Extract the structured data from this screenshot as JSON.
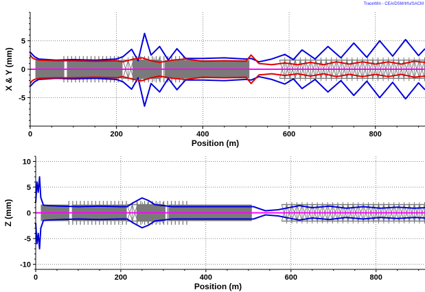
{
  "watermark": "TraceWin - CEA/DSM/Irfu/SACM",
  "colors": {
    "x_envelope": "#e00000",
    "y_envelope": "#0000dd",
    "z_envelope": "#0000dd",
    "axis_line": "#ff00ff",
    "elements": "#7a7a7a",
    "grid": "#000000"
  },
  "chart_data": [
    {
      "type": "line",
      "title": "",
      "xlabel": "Position (m)",
      "ylabel": "X & Y (mm)",
      "xlim": [
        0,
        915
      ],
      "ylim": [
        -10,
        10
      ],
      "xticks": [
        0,
        200,
        400,
        600,
        800
      ],
      "yticks": [
        5,
        0,
        -5
      ],
      "grid": true,
      "series": [
        {
          "color": "y_envelope",
          "x": [
            0,
            5,
            10,
            20,
            60,
            100,
            150,
            200,
            215,
            235,
            250,
            265,
            280,
            300,
            320,
            340,
            360,
            400,
            450,
            500,
            512,
            530,
            560,
            590,
            610,
            630,
            660,
            690,
            720,
            750,
            780,
            810,
            840,
            870,
            900,
            915
          ],
          "y": [
            3,
            2.6,
            2.2,
            1.8,
            1.6,
            1.7,
            1.6,
            1.8,
            2.2,
            3.5,
            1.5,
            6.3,
            2.5,
            4.0,
            1.6,
            3.6,
            1.9,
            1.9,
            2.0,
            1.8,
            1.9,
            1.3,
            1.8,
            2.6,
            1.7,
            3.4,
            1.8,
            4.0,
            2.0,
            4.6,
            2.1,
            5.0,
            2.3,
            5.2,
            2.4,
            3.6
          ]
        },
        {
          "color": "y_envelope",
          "x": [
            0,
            5,
            10,
            20,
            60,
            100,
            150,
            200,
            215,
            235,
            250,
            265,
            280,
            300,
            320,
            340,
            360,
            400,
            450,
            500,
            512,
            530,
            560,
            590,
            610,
            630,
            660,
            690,
            720,
            750,
            780,
            810,
            840,
            870,
            900,
            915
          ],
          "y": [
            -3,
            -2.6,
            -2.2,
            -1.8,
            -1.6,
            -1.7,
            -1.6,
            -1.8,
            -2.2,
            -3.5,
            -1.5,
            -6.5,
            -2.5,
            -4.0,
            -1.6,
            -3.6,
            -1.9,
            -1.9,
            -2.0,
            -1.8,
            -1.9,
            -1.3,
            -1.8,
            -2.6,
            -1.7,
            -3.4,
            -1.8,
            -4.0,
            -2.0,
            -4.6,
            -2.1,
            -5.0,
            -2.3,
            -5.2,
            -2.4,
            -3.6
          ]
        },
        {
          "color": "x_envelope",
          "x": [
            0,
            5,
            10,
            20,
            60,
            100,
            150,
            200,
            215,
            240,
            260,
            280,
            300,
            330,
            360,
            400,
            450,
            500,
            512,
            530,
            560,
            590,
            620,
            650,
            680,
            710,
            740,
            770,
            800,
            830,
            860,
            890,
            915
          ],
          "y": [
            2.5,
            2.0,
            1.8,
            1.6,
            1.5,
            1.5,
            1.4,
            1.5,
            1.3,
            1.8,
            2.0,
            1.5,
            1.2,
            1.6,
            1.8,
            1.4,
            1.5,
            1.4,
            2.5,
            1.0,
            0.8,
            1.1,
            0.8,
            1.2,
            0.8,
            1.3,
            0.9,
            1.3,
            0.9,
            1.3,
            0.9,
            1.4,
            1.2
          ]
        },
        {
          "color": "x_envelope",
          "x": [
            0,
            5,
            10,
            20,
            60,
            100,
            150,
            200,
            215,
            240,
            260,
            280,
            300,
            330,
            360,
            400,
            450,
            500,
            512,
            530,
            560,
            590,
            620,
            650,
            680,
            710,
            740,
            770,
            800,
            830,
            860,
            890,
            915
          ],
          "y": [
            -2.5,
            -2.0,
            -1.8,
            -1.6,
            -1.5,
            -1.5,
            -1.4,
            -1.5,
            -1.3,
            -1.8,
            -2.0,
            -1.5,
            -1.2,
            -1.6,
            -1.8,
            -1.4,
            -1.5,
            -1.4,
            -2.5,
            -1.0,
            -0.8,
            -1.1,
            -0.8,
            -1.2,
            -0.8,
            -1.3,
            -0.9,
            -1.3,
            -0.9,
            -1.3,
            -0.9,
            -1.4,
            -1.2
          ]
        }
      ]
    },
    {
      "type": "line",
      "title": "",
      "xlabel": "Position (m)",
      "ylabel": "Z (mm)",
      "xlim": [
        0,
        915
      ],
      "ylim": [
        -11,
        11
      ],
      "xticks": [
        0,
        200,
        400,
        600,
        800
      ],
      "yticks": [
        10,
        5,
        0,
        -5,
        -10
      ],
      "grid": true,
      "series": [
        {
          "color": "z_envelope",
          "x": [
            0,
            3,
            6,
            9,
            12,
            18,
            30,
            60,
            100,
            150,
            200,
            215,
            230,
            250,
            265,
            280,
            300,
            320,
            400,
            450,
            512,
            540,
            570,
            600,
            620,
            650,
            690,
            730,
            770,
            810,
            850,
            890,
            915
          ],
          "y": [
            2,
            6,
            4,
            7,
            3,
            1.5,
            1.4,
            1.3,
            1.2,
            1.3,
            1.2,
            1.2,
            2.0,
            2.9,
            2.4,
            1.6,
            1.4,
            1.2,
            1.2,
            1.2,
            1.2,
            0.4,
            0.6,
            1.1,
            1.4,
            1.0,
            1.3,
            0.9,
            1.2,
            0.9,
            1.1,
            0.9,
            1.0
          ]
        },
        {
          "color": "z_envelope",
          "x": [
            0,
            3,
            6,
            9,
            12,
            18,
            30,
            60,
            100,
            150,
            200,
            215,
            230,
            250,
            265,
            280,
            300,
            320,
            400,
            450,
            512,
            540,
            570,
            600,
            620,
            650,
            690,
            730,
            770,
            810,
            850,
            890,
            915
          ],
          "y": [
            -2,
            -6,
            -4,
            -7,
            -3,
            -1.5,
            -1.4,
            -1.3,
            -1.2,
            -1.3,
            -1.2,
            -1.2,
            -2.0,
            -2.9,
            -2.4,
            -1.6,
            -1.4,
            -1.2,
            -1.2,
            -1.2,
            -1.2,
            -0.4,
            -0.6,
            -1.1,
            -1.4,
            -1.0,
            -1.3,
            -0.9,
            -1.2,
            -0.9,
            -1.1,
            -0.9,
            -1.0
          ]
        }
      ]
    }
  ],
  "lattice": {
    "dense_blocks": [
      [
        12,
        78
      ],
      [
        85,
        213
      ],
      [
        238,
        305
      ],
      [
        312,
        508
      ]
    ],
    "thin_tick_runs": [
      [
        78,
        213
      ],
      [
        238,
        360
      ]
    ],
    "triangle_sections": [
      [
        215,
        300
      ],
      [
        578,
        915
      ]
    ],
    "height_mm_xy": 1.6,
    "height_mm_z": 1.6
  }
}
